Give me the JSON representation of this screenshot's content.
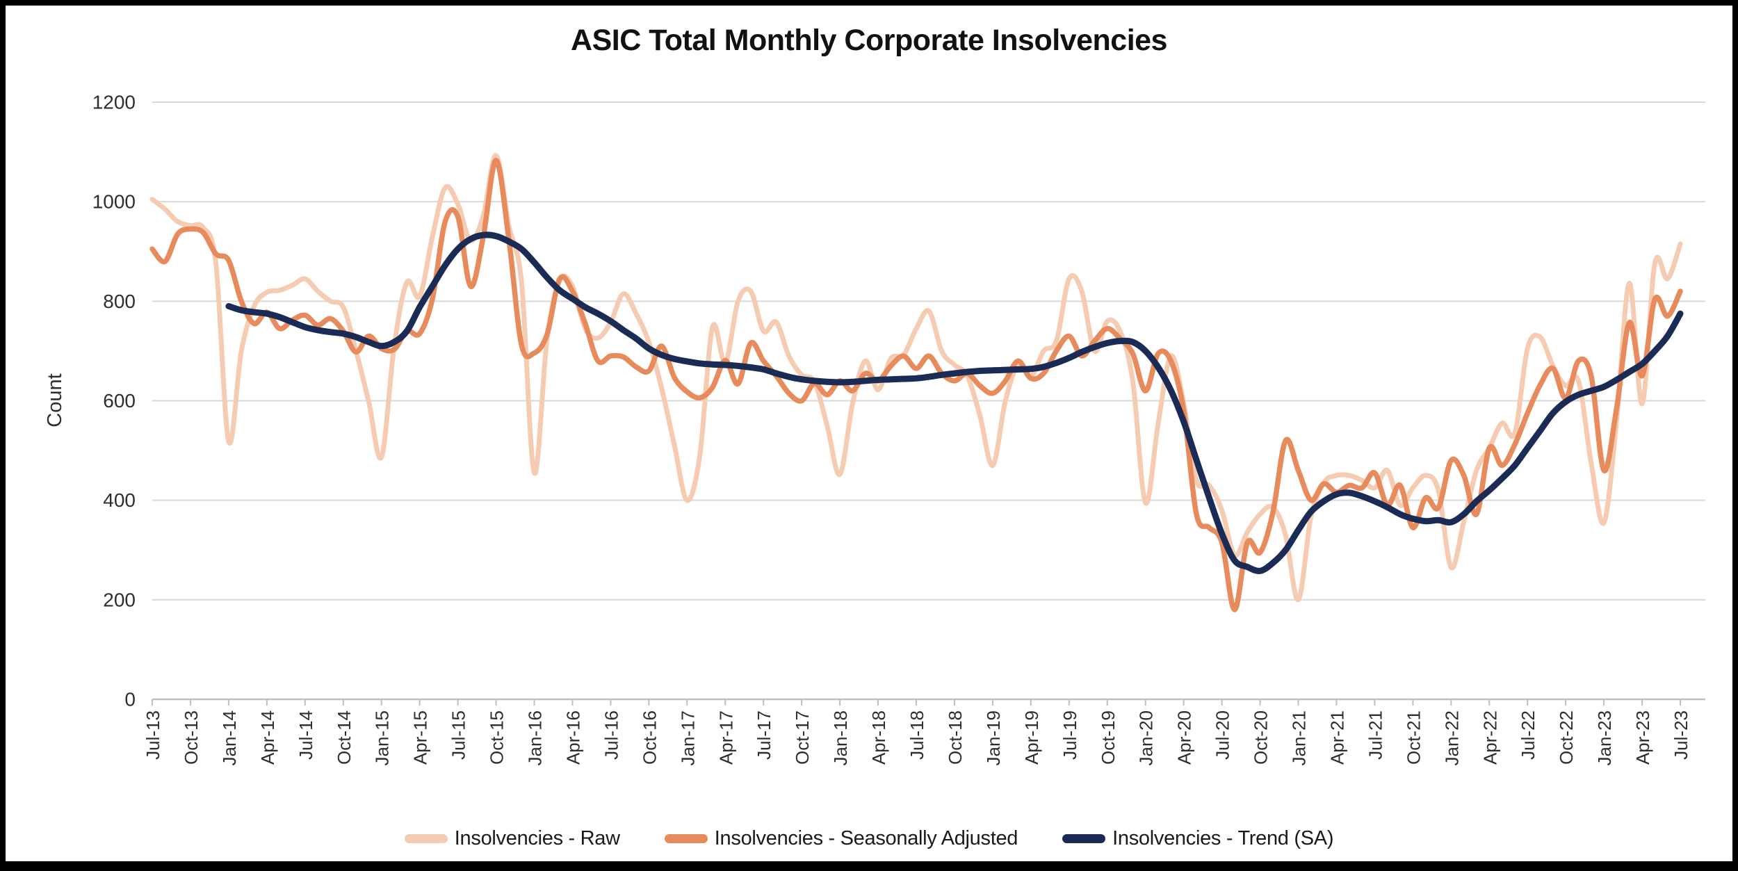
{
  "title": "ASIC Total Monthly Corporate Insolvencies",
  "y_axis_title": "Count",
  "colors": {
    "raw": "#F5CBB2",
    "seasonally_adjusted": "#E88B5C",
    "trend": "#1A2C55",
    "gridline": "#D9D9D9",
    "axis_line": "#BFBFBF",
    "tick_text": "#2e2e2e",
    "title_text": "#111111",
    "background": "#FFFFFF",
    "frame": "#000000"
  },
  "legend": [
    {
      "label": "Insolvencies - Raw",
      "color": "#F5CBB2"
    },
    {
      "label": "Insolvencies - Seasonally Adjusted",
      "color": "#E88B5C"
    },
    {
      "label": "Insolvencies - Trend (SA)",
      "color": "#1A2C55"
    }
  ],
  "chart_data": {
    "type": "line",
    "title": "ASIC Total Monthly Corporate Insolvencies",
    "xlabel": "",
    "ylabel": "Count",
    "ylim": [
      0,
      1200
    ],
    "y_ticks": [
      0,
      200,
      400,
      600,
      800,
      1000,
      1200
    ],
    "grid": "horizontal",
    "legend_position": "bottom",
    "x_label_every": 3,
    "months": [
      "Jul-13",
      "Aug-13",
      "Sep-13",
      "Oct-13",
      "Nov-13",
      "Dec-13",
      "Jan-14",
      "Feb-14",
      "Mar-14",
      "Apr-14",
      "May-14",
      "Jun-14",
      "Jul-14",
      "Aug-14",
      "Sep-14",
      "Oct-14",
      "Nov-14",
      "Dec-14",
      "Jan-15",
      "Feb-15",
      "Mar-15",
      "Apr-15",
      "May-15",
      "Jun-15",
      "Jul-15",
      "Aug-15",
      "Sep-15",
      "Oct-15",
      "Nov-15",
      "Dec-15",
      "Jan-16",
      "Feb-16",
      "Mar-16",
      "Apr-16",
      "May-16",
      "Jun-16",
      "Jul-16",
      "Aug-16",
      "Sep-16",
      "Oct-16",
      "Nov-16",
      "Dec-16",
      "Jan-17",
      "Feb-17",
      "Mar-17",
      "Apr-17",
      "May-17",
      "Jun-17",
      "Jul-17",
      "Aug-17",
      "Sep-17",
      "Oct-17",
      "Nov-17",
      "Dec-17",
      "Jan-18",
      "Feb-18",
      "Mar-18",
      "Apr-18",
      "May-18",
      "Jun-18",
      "Jul-18",
      "Aug-18",
      "Sep-18",
      "Oct-18",
      "Nov-18",
      "Dec-18",
      "Jan-19",
      "Feb-19",
      "Mar-19",
      "Apr-19",
      "May-19",
      "Jun-19",
      "Jul-19",
      "Aug-19",
      "Sep-19",
      "Oct-19",
      "Nov-19",
      "Dec-19",
      "Jan-20",
      "Feb-20",
      "Mar-20",
      "Apr-20",
      "May-20",
      "Jun-20",
      "Jul-20",
      "Aug-20",
      "Sep-20",
      "Oct-20",
      "Nov-20",
      "Dec-20",
      "Jan-21",
      "Feb-21",
      "Mar-21",
      "Apr-21",
      "May-21",
      "Jun-21",
      "Jul-21",
      "Aug-21",
      "Sep-21",
      "Oct-21",
      "Nov-21",
      "Dec-21",
      "Jan-22",
      "Feb-22",
      "Mar-22",
      "Apr-22",
      "May-22",
      "Jun-22",
      "Jul-22",
      "Aug-22",
      "Sep-22",
      "Oct-22",
      "Nov-22",
      "Dec-22",
      "Jan-23",
      "Feb-23",
      "Mar-23",
      "Apr-23",
      "May-23",
      "Jun-23",
      "Jul-23"
    ],
    "series": [
      {
        "name": "Insolvencies - Raw",
        "color": "#F5CBB2",
        "width": 7,
        "values": [
          1005,
          985,
          960,
          952,
          948,
          875,
          518,
          700,
          790,
          818,
          822,
          832,
          845,
          820,
          800,
          788,
          700,
          598,
          487,
          710,
          838,
          810,
          930,
          1028,
          995,
          922,
          972,
          1093,
          952,
          838,
          455,
          722,
          842,
          830,
          745,
          726,
          758,
          815,
          775,
          718,
          625,
          511,
          400,
          490,
          748,
          676,
          800,
          820,
          740,
          758,
          690,
          652,
          638,
          550,
          452,
          595,
          680,
          622,
          685,
          692,
          745,
          780,
          700,
          672,
          650,
          570,
          470,
          600,
          672,
          648,
          700,
          720,
          845,
          820,
          700,
          760,
          740,
          640,
          395,
          555,
          690,
          595,
          440,
          430,
          380,
          290,
          336,
          372,
          386,
          330,
          200,
          367,
          435,
          450,
          450,
          440,
          425,
          460,
          390,
          425,
          450,
          420,
          265,
          357,
          460,
          505,
          555,
          535,
          705,
          728,
          670,
          630,
          640,
          475,
          355,
          560,
          836,
          594,
          876,
          845,
          915
        ]
      },
      {
        "name": "Insolvencies - Seasonally Adjusted",
        "color": "#E88B5C",
        "width": 7.5,
        "values": [
          905,
          880,
          935,
          945,
          938,
          895,
          882,
          800,
          755,
          778,
          745,
          762,
          772,
          752,
          765,
          740,
          698,
          730,
          705,
          703,
          740,
          735,
          805,
          960,
          970,
          830,
          930,
          1083,
          925,
          712,
          696,
          733,
          845,
          820,
          755,
          680,
          690,
          688,
          668,
          660,
          710,
          647,
          618,
          606,
          627,
          681,
          634,
          716,
          680,
          650,
          615,
          600,
          635,
          612,
          640,
          620,
          655,
          640,
          670,
          690,
          665,
          690,
          655,
          640,
          655,
          630,
          615,
          640,
          680,
          645,
          655,
          700,
          730,
          690,
          720,
          745,
          725,
          695,
          620,
          695,
          680,
          580,
          372,
          345,
          315,
          180,
          315,
          295,
          375,
          520,
          460,
          400,
          433,
          416,
          430,
          425,
          455,
          390,
          430,
          345,
          405,
          385,
          480,
          450,
          372,
          505,
          470,
          512,
          575,
          632,
          665,
          605,
          680,
          650,
          460,
          585,
          757,
          650,
          804,
          770,
          820
        ]
      },
      {
        "name": "Insolvencies - Trend (SA)",
        "color": "#1A2C55",
        "width": 9,
        "values": [
          null,
          null,
          null,
          null,
          null,
          null,
          790,
          782,
          778,
          775,
          768,
          758,
          748,
          742,
          738,
          735,
          728,
          718,
          710,
          718,
          740,
          788,
          830,
          872,
          905,
          925,
          933,
          931,
          920,
          905,
          878,
          848,
          822,
          805,
          788,
          775,
          760,
          742,
          725,
          705,
          692,
          684,
          679,
          675,
          673,
          672,
          670,
          667,
          663,
          655,
          648,
          643,
          640,
          638,
          637,
          638,
          640,
          642,
          643,
          644,
          645,
          648,
          652,
          655,
          658,
          660,
          661,
          662,
          663,
          664,
          668,
          676,
          686,
          698,
          708,
          716,
          720,
          718,
          700,
          667,
          621,
          558,
          481,
          405,
          333,
          279,
          266,
          258,
          274,
          300,
          340,
          377,
          398,
          412,
          415,
          408,
          398,
          386,
          372,
          363,
          358,
          360,
          356,
          372,
          398,
          420,
          444,
          470,
          505,
          540,
          575,
          598,
          612,
          620,
          628,
          642,
          658,
          674,
          700,
          730,
          775
        ]
      }
    ]
  }
}
